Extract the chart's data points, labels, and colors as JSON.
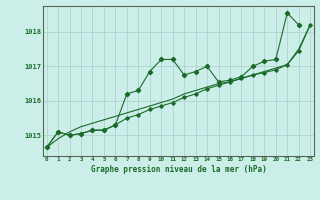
{
  "xlabel": "Graphe pression niveau de la mer (hPa)",
  "background_color": "#cceee8",
  "plot_bg_color": "#cceee8",
  "grid_color": "#aacccc",
  "line_color": "#1a6b2a",
  "x": [
    0,
    1,
    2,
    3,
    4,
    5,
    6,
    7,
    8,
    9,
    10,
    11,
    12,
    13,
    14,
    15,
    16,
    17,
    18,
    19,
    20,
    21,
    22,
    23
  ],
  "y_zigzag": [
    1014.65,
    1015.1,
    1015.0,
    1015.05,
    1015.15,
    1015.15,
    1015.3,
    1016.2,
    1016.3,
    1016.85,
    1017.2,
    1017.2,
    1016.75,
    1016.85,
    1017.0,
    1016.55,
    1016.6,
    1016.7,
    1017.0,
    1017.15,
    1017.2,
    1018.55,
    1018.2,
    null
  ],
  "y_smooth": [
    1014.65,
    1015.1,
    1015.0,
    1015.05,
    1015.15,
    1015.15,
    1015.3,
    1015.5,
    1015.6,
    1015.75,
    1015.85,
    1015.95,
    1016.1,
    1016.2,
    1016.35,
    1016.45,
    1016.55,
    1016.65,
    1016.75,
    1016.82,
    1016.9,
    1017.05,
    1017.45,
    1018.2
  ],
  "y_trend": [
    1014.65,
    1014.9,
    1015.1,
    1015.25,
    1015.35,
    1015.45,
    1015.55,
    1015.65,
    1015.75,
    1015.85,
    1015.95,
    1016.05,
    1016.2,
    1016.3,
    1016.4,
    1016.5,
    1016.55,
    1016.65,
    1016.75,
    1016.85,
    1016.95,
    1017.05,
    1017.5,
    1018.2
  ],
  "yticks": [
    1015,
    1016,
    1017,
    1018
  ],
  "xticks": [
    0,
    1,
    2,
    3,
    4,
    5,
    6,
    7,
    8,
    9,
    10,
    11,
    12,
    13,
    14,
    15,
    16,
    17,
    18,
    19,
    20,
    21,
    22,
    23
  ],
  "ylim": [
    1014.4,
    1018.75
  ],
  "xlim": [
    -0.3,
    23.3
  ]
}
